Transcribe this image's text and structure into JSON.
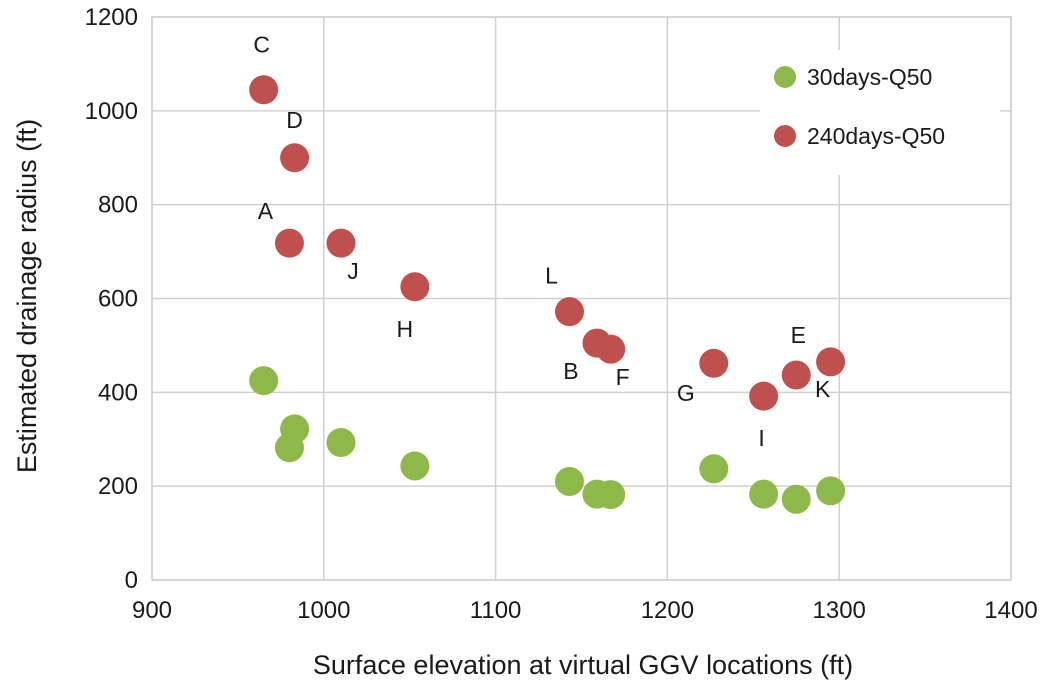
{
  "chart_data": {
    "type": "scatter",
    "title": "",
    "xlabel": "Surface elevation at virtual GGV locations (ft)",
    "ylabel": "Estimated drainage radius (ft)",
    "xlim": [
      900,
      1400
    ],
    "ylim": [
      0,
      1200
    ],
    "x_ticks": [
      900,
      1000,
      1100,
      1200,
      1300,
      1400
    ],
    "y_ticks": [
      0,
      200,
      400,
      600,
      800,
      1000,
      1200
    ],
    "grid": true,
    "legend_position": "top-right",
    "series": [
      {
        "name": "30days-Q50",
        "color": "#8db94a",
        "points": [
          {
            "label": "A",
            "x": 980,
            "y": 282
          },
          {
            "label": "B",
            "x": 1159,
            "y": 183
          },
          {
            "label": "C",
            "x": 965,
            "y": 425
          },
          {
            "label": "D",
            "x": 983,
            "y": 322
          },
          {
            "label": "E",
            "x": 1275,
            "y": 172
          },
          {
            "label": "F",
            "x": 1167,
            "y": 182
          },
          {
            "label": "G",
            "x": 1227,
            "y": 237
          },
          {
            "label": "H",
            "x": 1053,
            "y": 243
          },
          {
            "label": "I",
            "x": 1256,
            "y": 183
          },
          {
            "label": "J",
            "x": 1010,
            "y": 293
          },
          {
            "label": "K",
            "x": 1295,
            "y": 190
          },
          {
            "label": "L",
            "x": 1143,
            "y": 210
          }
        ]
      },
      {
        "name": "240days-Q50",
        "color": "#c0504d",
        "points": [
          {
            "label": "A",
            "x": 980,
            "y": 718
          },
          {
            "label": "B",
            "x": 1159,
            "y": 505
          },
          {
            "label": "C",
            "x": 965,
            "y": 1045
          },
          {
            "label": "D",
            "x": 983,
            "y": 900
          },
          {
            "label": "E",
            "x": 1275,
            "y": 437
          },
          {
            "label": "F",
            "x": 1167,
            "y": 492
          },
          {
            "label": "G",
            "x": 1227,
            "y": 462
          },
          {
            "label": "H",
            "x": 1053,
            "y": 625
          },
          {
            "label": "I",
            "x": 1256,
            "y": 392
          },
          {
            "label": "J",
            "x": 1010,
            "y": 718
          },
          {
            "label": "K",
            "x": 1295,
            "y": 465
          },
          {
            "label": "L",
            "x": 1143,
            "y": 572
          }
        ]
      }
    ]
  }
}
